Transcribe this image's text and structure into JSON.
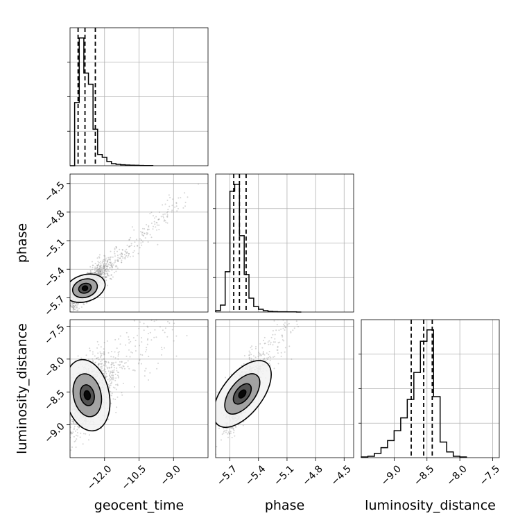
{
  "chart_data": {
    "type": "corner",
    "parameters": [
      "geocent_time",
      "phase",
      "luminosity_distance"
    ],
    "ranges": {
      "geocent_time": [
        -13.5,
        -7.5
      ],
      "phase": [
        -5.85,
        -4.4
      ],
      "luminosity_distance": [
        -9.5,
        -7.4
      ]
    },
    "ticks": {
      "geocent_time": [
        -12.0,
        -10.5,
        -9.0
      ],
      "phase": [
        -5.7,
        -5.4,
        -5.1,
        -4.8,
        -4.5
      ],
      "luminosity_distance": [
        -9.0,
        -8.5,
        -8.0,
        -7.5
      ]
    },
    "tick_labels": {
      "geocent_time": [
        "−12.0",
        "−10.5",
        "−9.0"
      ],
      "phase": [
        "−5.7",
        "−5.4",
        "−5.1",
        "−4.8",
        "−4.5"
      ],
      "luminosity_distance": [
        "−9.0",
        "−8.5",
        "−8.0",
        "−7.5"
      ]
    },
    "quantiles": {
      "geocent_time": [
        -13.15,
        -12.85,
        -12.4
      ],
      "phase": [
        -5.66,
        -5.6,
        -5.53
      ],
      "luminosity_distance": [
        -8.74,
        -8.55,
        -8.42
      ]
    },
    "histograms": {
      "geocent_time": {
        "edges": [
          -13.5,
          -13.3,
          -13.1,
          -12.9,
          -12.7,
          -12.5,
          -12.3,
          -12.1,
          -11.9,
          -11.7,
          -11.5,
          -11.3,
          -11.1,
          -10.9,
          -10.7,
          -10.5,
          -10.3,
          -10.1,
          -9.9
        ],
        "counts": [
          0.0,
          0.45,
          0.91,
          0.66,
          0.58,
          0.26,
          0.08,
          0.06,
          0.03,
          0.015,
          0.01,
          0.007,
          0.005,
          0.004,
          0.003,
          0.002,
          0.001,
          0.001
        ]
      },
      "phase": {
        "edges": [
          -5.85,
          -5.8,
          -5.75,
          -5.7,
          -5.65,
          -5.6,
          -5.55,
          -5.5,
          -5.45,
          -5.4,
          -5.35,
          -5.3,
          -5.25,
          -5.2,
          -5.15,
          -5.1,
          -5.05,
          -5.0,
          -4.95
        ],
        "counts": [
          0.01,
          0.05,
          0.29,
          0.87,
          0.92,
          0.55,
          0.27,
          0.1,
          0.04,
          0.02,
          0.01,
          0.005,
          0.003,
          0.002,
          0.002,
          0.001,
          0.001,
          0.0
        ]
      },
      "luminosity_distance": {
        "edges": [
          -9.5,
          -9.4,
          -9.3,
          -9.2,
          -9.1,
          -9.0,
          -8.9,
          -8.8,
          -8.7,
          -8.6,
          -8.5,
          -8.4,
          -8.3,
          -8.2,
          -8.1,
          -8.0,
          -7.9
        ],
        "counts": [
          0.005,
          0.01,
          0.03,
          0.07,
          0.12,
          0.19,
          0.28,
          0.41,
          0.6,
          0.82,
          0.9,
          0.43,
          0.11,
          0.04,
          0.01,
          0.005
        ]
      }
    },
    "contours": {
      "phase_vs_geocent_time": {
        "center": [
          -12.85,
          -5.6
        ],
        "levels": [
          {
            "rx": 0.9,
            "ry": 0.14,
            "fill": "#f2f2f2"
          },
          {
            "rx": 0.55,
            "ry": 0.095,
            "fill": "#9a9a9a"
          },
          {
            "rx": 0.28,
            "ry": 0.05,
            "fill": "#4a4a4a"
          },
          {
            "rx": 0.12,
            "ry": 0.025,
            "fill": "#000000"
          }
        ],
        "angle_deg": -18
      },
      "luminosity_distance_vs_geocent_time": {
        "center": [
          -12.75,
          -8.55
        ],
        "levels": [
          {
            "rx": 0.95,
            "ry": 0.55,
            "fill": "#f2f2f2"
          },
          {
            "rx": 0.6,
            "ry": 0.33,
            "fill": "#9a9a9a"
          },
          {
            "rx": 0.3,
            "ry": 0.16,
            "fill": "#4a4a4a"
          },
          {
            "rx": 0.13,
            "ry": 0.07,
            "fill": "#000000"
          }
        ],
        "angle_deg": -12
      },
      "luminosity_distance_vs_phase": {
        "center": [
          -5.57,
          -8.53
        ],
        "levels": [
          {
            "rx": 0.21,
            "ry": 0.6,
            "fill": "#f2f2f2"
          },
          {
            "rx": 0.13,
            "ry": 0.36,
            "fill": "#9a9a9a"
          },
          {
            "rx": 0.07,
            "ry": 0.18,
            "fill": "#4a4a4a"
          },
          {
            "rx": 0.03,
            "ry": 0.07,
            "fill": "#000000"
          }
        ],
        "angle_deg": 38
      }
    },
    "colors": {
      "line": "#000000",
      "points": "#888888",
      "grid": "#b0b0b0"
    },
    "grid": true
  }
}
